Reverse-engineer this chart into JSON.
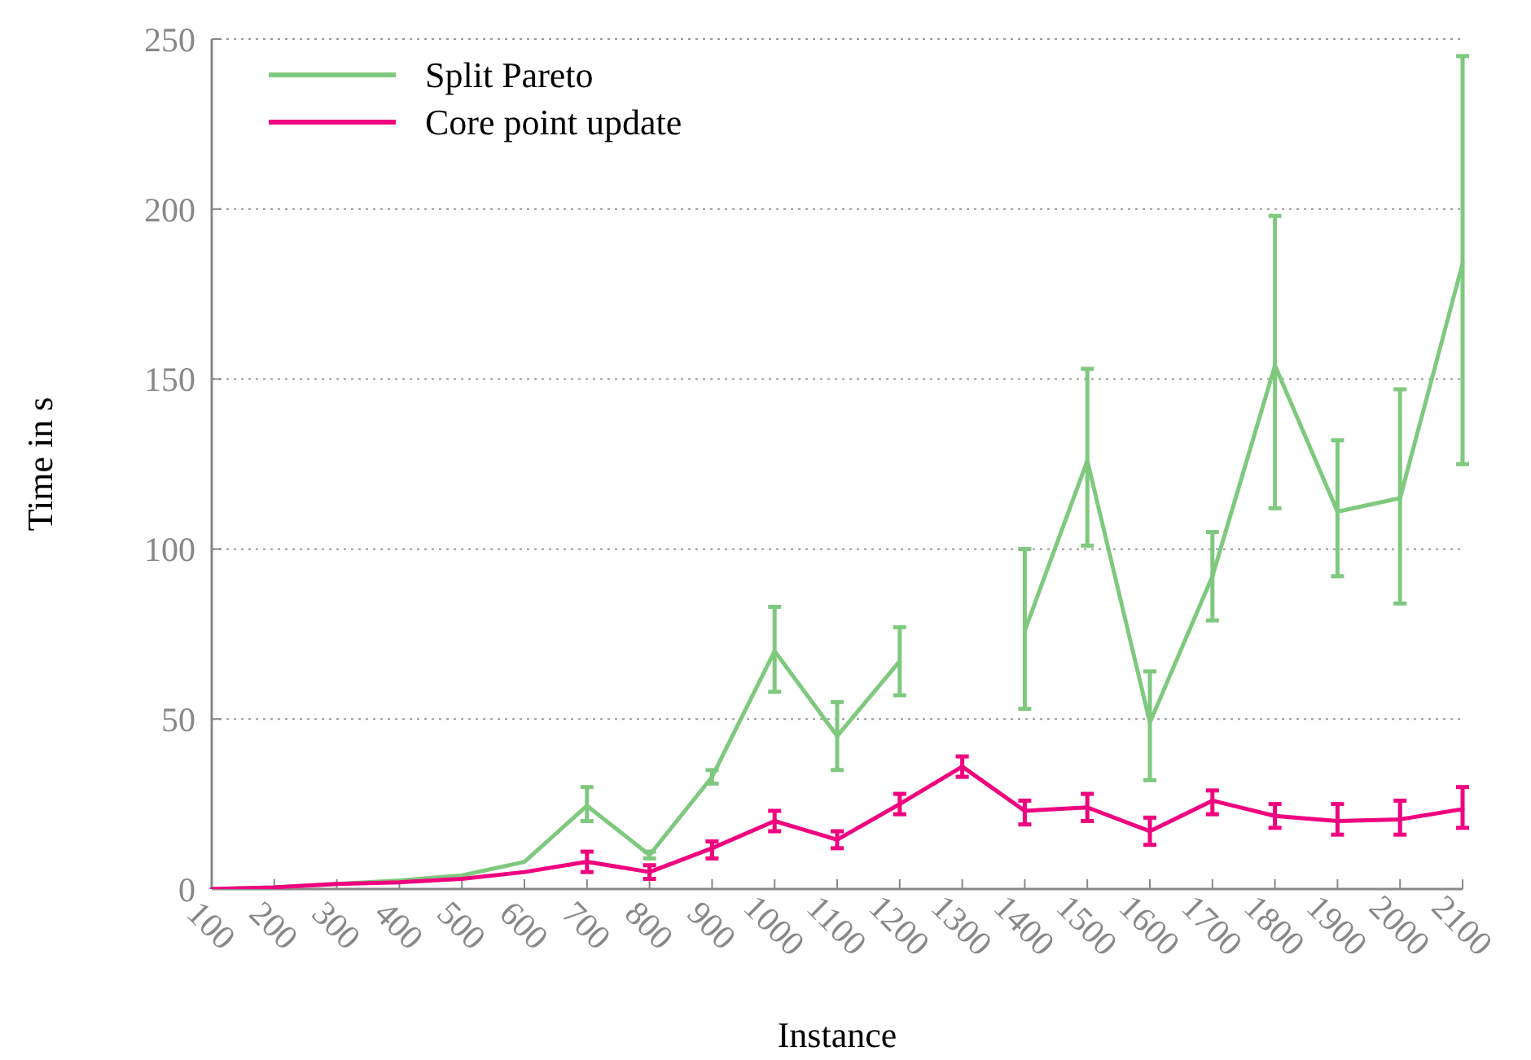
{
  "chart_data": {
    "type": "line",
    "xlabel": "Instance",
    "ylabel": "Time in s",
    "x": [
      100,
      200,
      300,
      400,
      500,
      600,
      700,
      800,
      900,
      1000,
      1100,
      1200,
      1300,
      1400,
      1500,
      1600,
      1700,
      1800,
      1900,
      2000,
      2100
    ],
    "xlim": [
      100,
      2100
    ],
    "xticks": [
      100,
      200,
      300,
      400,
      500,
      600,
      700,
      800,
      900,
      1000,
      1100,
      1200,
      1300,
      1400,
      1500,
      1600,
      1700,
      1800,
      1900,
      2000,
      2100
    ],
    "ylim": [
      0,
      250
    ],
    "yticks": [
      0,
      50,
      100,
      150,
      200,
      250
    ],
    "grid": "y",
    "legend": "top left",
    "marker": "none",
    "line_style": "solid",
    "series": [
      {
        "name": "Split Pareto",
        "color": "#7fc97f",
        "values": [
          0,
          0.5,
          1.5,
          2.5,
          4,
          8,
          24.5,
          10,
          33,
          70,
          45,
          67,
          null,
          76,
          126,
          49,
          92,
          154,
          111,
          115,
          184
        ],
        "errors": [
          null,
          null,
          null,
          null,
          null,
          null,
          [
            20,
            30
          ],
          [
            9,
            11
          ],
          [
            31,
            35
          ],
          [
            58,
            83
          ],
          [
            35,
            55
          ],
          [
            57,
            77
          ],
          null,
          [
            53,
            100
          ],
          [
            101,
            153
          ],
          [
            32,
            64
          ],
          [
            79,
            105
          ],
          [
            112,
            198
          ],
          [
            92,
            132
          ],
          [
            84,
            147
          ],
          [
            125,
            245
          ]
        ]
      },
      {
        "name": "Core point update",
        "color": "#f0027f",
        "values": [
          0,
          0.5,
          1.5,
          2,
          3,
          5,
          8,
          5,
          12,
          20,
          14.5,
          25,
          36,
          23,
          24,
          17,
          26,
          21.5,
          20,
          20.5,
          23.5
        ],
        "errors": [
          null,
          null,
          null,
          null,
          null,
          null,
          [
            5,
            11
          ],
          [
            3,
            7
          ],
          [
            9,
            14
          ],
          [
            17,
            23
          ],
          [
            12,
            17
          ],
          [
            22,
            28
          ],
          [
            33,
            39
          ],
          [
            19,
            26
          ],
          [
            20,
            28
          ],
          [
            13,
            21
          ],
          [
            22,
            29
          ],
          [
            18,
            25
          ],
          [
            16,
            25
          ],
          [
            16,
            26
          ],
          [
            18,
            30
          ]
        ]
      }
    ]
  }
}
